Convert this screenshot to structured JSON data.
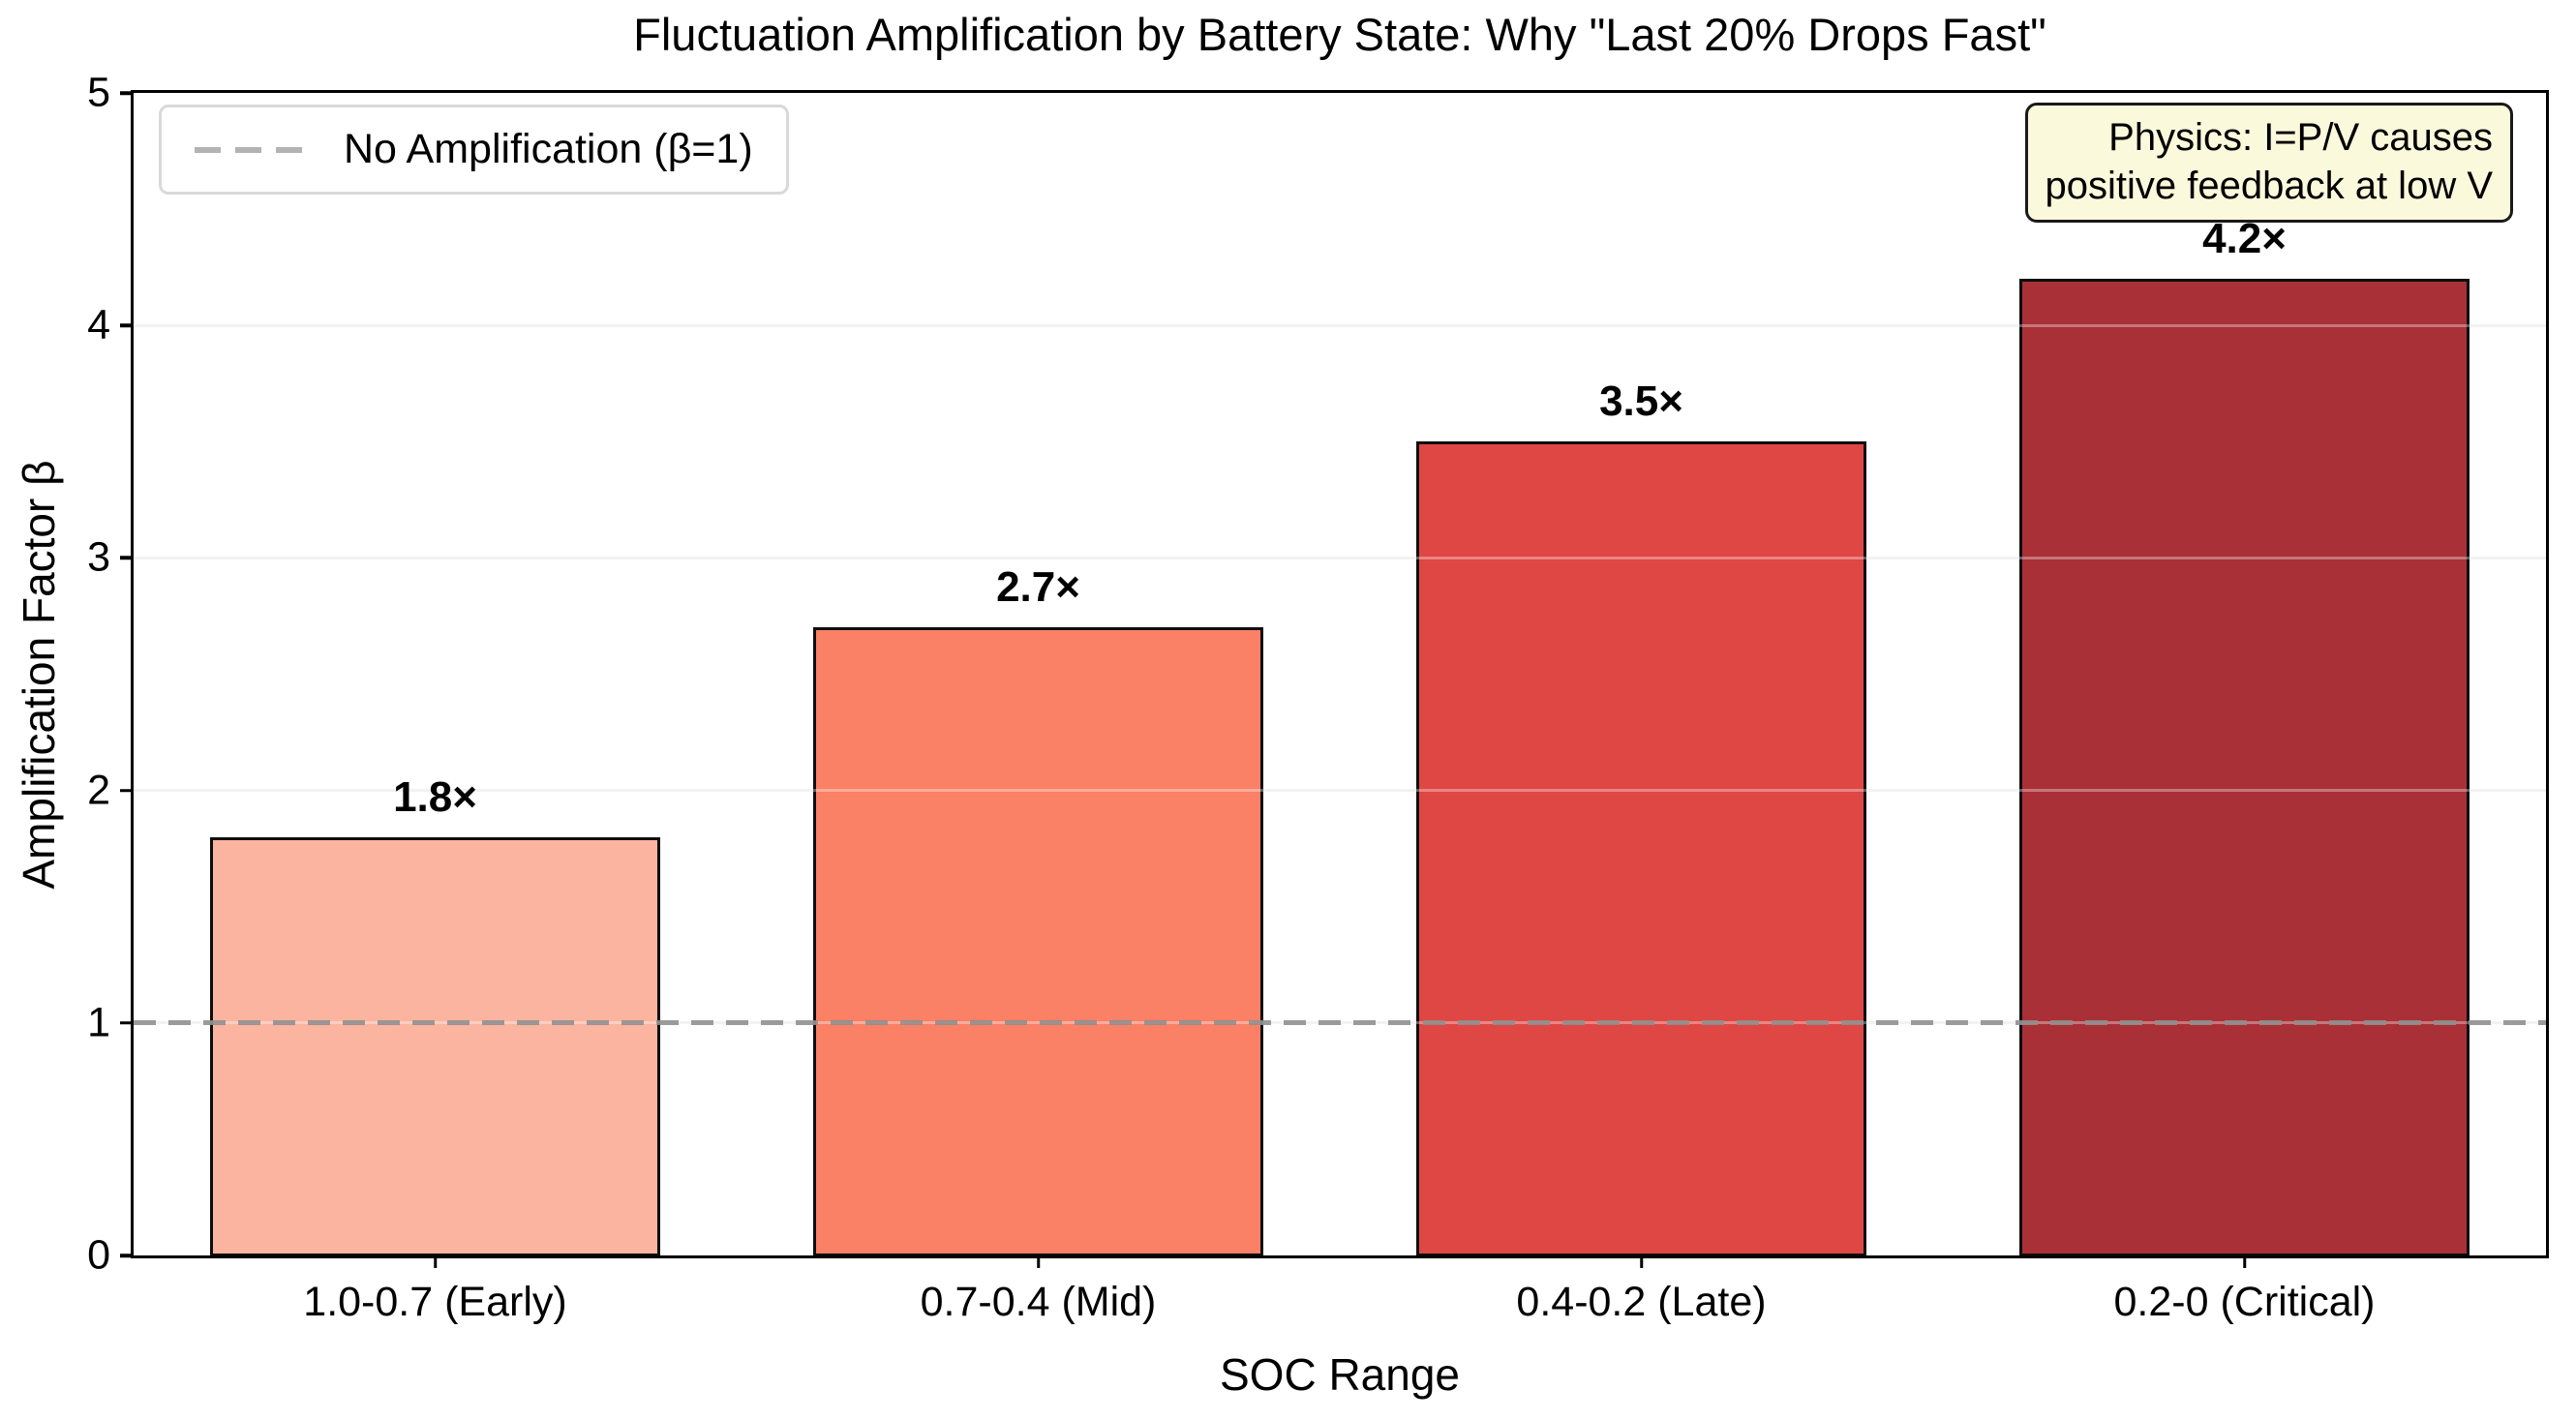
{
  "title": "Fluctuation Amplification by Battery State: Why \"Last 20% Drops Fast\"",
  "axes": {
    "xlabel": "SOC Range",
    "ylabel": "Amplification Factor β"
  },
  "legend": {
    "label": "No Amplification (β=1)"
  },
  "annotation": {
    "line1": "Physics: I=P/V causes",
    "line2": "positive feedback at low V",
    "background": "#FBF9DB"
  },
  "chart_data": {
    "type": "bar",
    "title": "Fluctuation Amplification by Battery State: Why \"Last 20% Drops Fast\"",
    "xlabel": "SOC Range",
    "ylabel": "Amplification Factor β",
    "categories": [
      "1.0-0.7 (Early)",
      "0.7-0.4 (Mid)",
      "0.4-0.2 (Late)",
      "0.2-0 (Critical)"
    ],
    "values": [
      1.8,
      2.7,
      3.5,
      4.2
    ],
    "bar_labels": [
      "1.8×",
      "2.7×",
      "3.5×",
      "4.2×"
    ],
    "bar_colors": [
      "#FBB4A0",
      "#FA8066",
      "#DE4743",
      "#A93036"
    ],
    "bar_edge_color": "#0d0d0d",
    "ylim": [
      0,
      5
    ],
    "yticks": [
      0,
      1,
      2,
      3,
      4,
      5
    ],
    "grid": "horizontal",
    "grid_color": "#EBEBEB",
    "legend_position": "upper left",
    "reference_line": {
      "y": 1,
      "label": "No Amplification (β=1)",
      "style": "dashed",
      "color": "#999999"
    }
  }
}
